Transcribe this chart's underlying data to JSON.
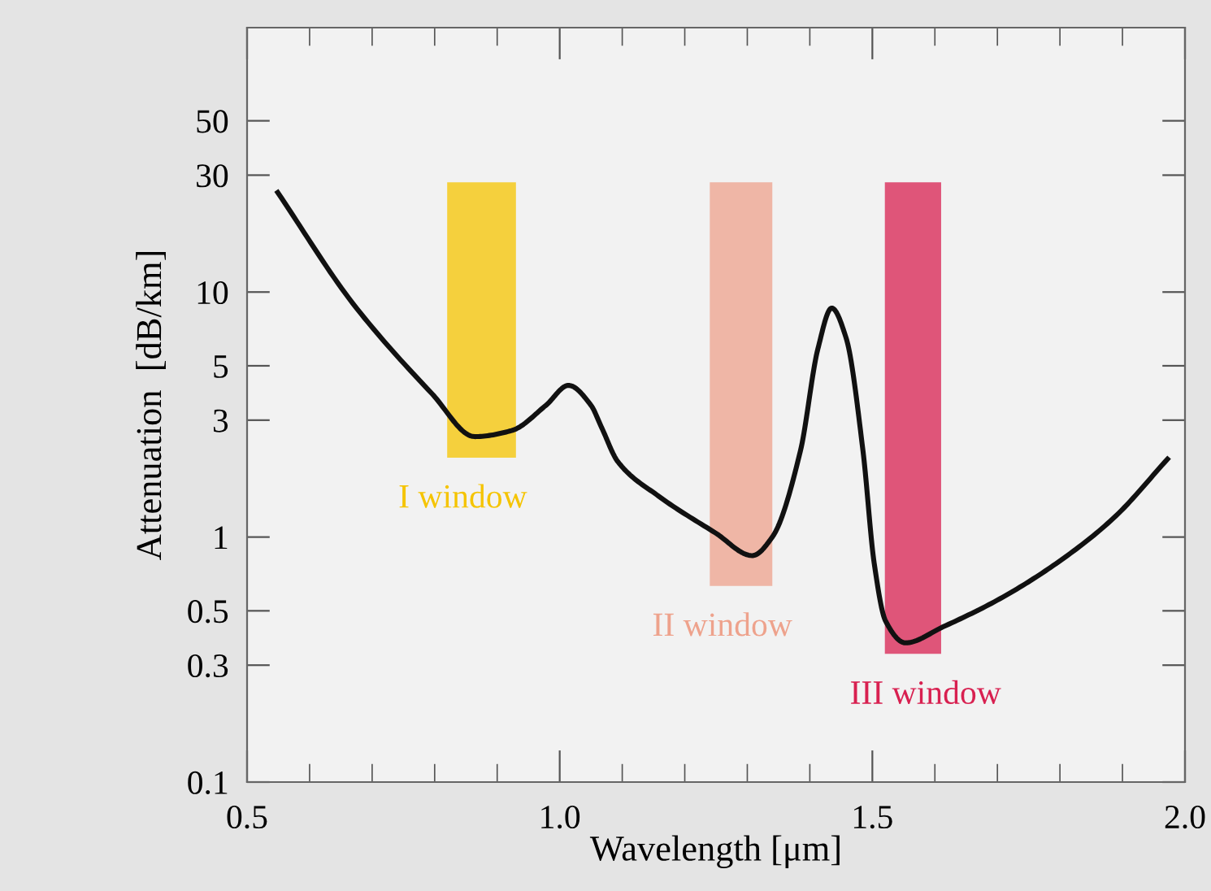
{
  "chart_data": {
    "type": "line",
    "xlabel": "Wavelength [μm]",
    "ylabel": "Attenuation  [dB/km]",
    "x": [
      0.549,
      0.669,
      0.796,
      0.864,
      0.923,
      0.978,
      1.014,
      1.05,
      1.067,
      1.093,
      1.158,
      1.249,
      1.308,
      1.34,
      1.385,
      1.413,
      1.435,
      1.458,
      1.485,
      1.503,
      1.521,
      1.553,
      1.613,
      1.704,
      1.794,
      1.885,
      1.972
    ],
    "series": [
      {
        "color": "#111111",
        "values": [
          25.5,
          9.0,
          3.84,
          2.57,
          2.72,
          3.45,
          4.16,
          3.45,
          2.8,
          2.03,
          1.47,
          1.04,
          0.84,
          1.0,
          2.25,
          5.88,
          8.6,
          6.5,
          2.25,
          0.78,
          0.455,
          0.37,
          0.43,
          0.56,
          0.78,
          1.19,
          2.08
        ]
      }
    ],
    "log": "y",
    "xlim": [
      0.5,
      2.0
    ],
    "ylim": [
      0.1,
      120
    ],
    "xticks": [
      0.5,
      {
        "value": 0.6,
        "label": null
      },
      {
        "value": 0.7,
        "label": null
      },
      {
        "value": 0.8,
        "label": null
      },
      {
        "value": 0.9,
        "label": null
      },
      {
        "value": 1.0,
        "label": "1.0"
      },
      {
        "value": 1.1,
        "label": null
      },
      {
        "value": 1.2,
        "label": null
      },
      {
        "value": 1.3,
        "label": null
      },
      {
        "value": 1.4,
        "label": null
      },
      1.5,
      {
        "value": 1.6,
        "label": null
      },
      {
        "value": 1.7,
        "label": null
      },
      {
        "value": 1.8,
        "label": null
      },
      {
        "value": 1.9,
        "label": null
      },
      {
        "value": 2.0,
        "label": "2.0"
      }
    ],
    "yticks": [
      0.1,
      0.3,
      0.5,
      1,
      3,
      5,
      10,
      30,
      50
    ],
    "bands": [
      {
        "axis": "x",
        "from": 0.82,
        "to": 0.93,
        "label": "I window",
        "color": "#f5c400"
      },
      {
        "axis": "x",
        "from": 1.24,
        "to": 1.34,
        "label": "II window",
        "color": "#eea28c"
      },
      {
        "axis": "x",
        "from": 1.52,
        "to": 1.61,
        "label": "III window",
        "color": "#d82050"
      }
    ],
    "grid": false,
    "legend": false,
    "marker": "none",
    "line_style": "solid"
  }
}
